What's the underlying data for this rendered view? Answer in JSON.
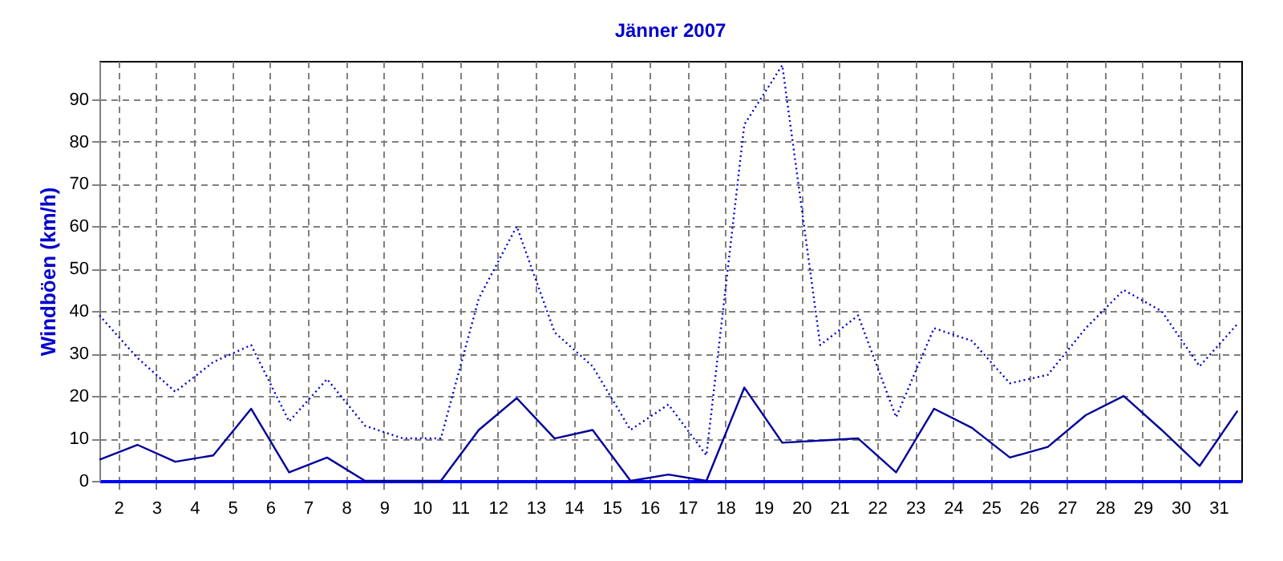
{
  "chart_data": {
    "type": "line",
    "title": "Jänner 2007",
    "ylabel": "Windböen (km/h)",
    "x": [
      1.5,
      2.5,
      3.5,
      4.5,
      5.5,
      6.5,
      7.5,
      8.5,
      9.5,
      10.5,
      11.5,
      12.5,
      13.5,
      14.5,
      15.5,
      16.5,
      17.5,
      18.5,
      19.5,
      20.5,
      21.5,
      22.5,
      23.5,
      24.5,
      25.5,
      26.5,
      27.5,
      28.5,
      29.5,
      30.5,
      31.5
    ],
    "series": [
      {
        "color": "#0000cc",
        "line_style": "dotted",
        "values": [
          39,
          29,
          21,
          28,
          32,
          14,
          24,
          13,
          10,
          10,
          43,
          60,
          35,
          27,
          12,
          18,
          6,
          84,
          98,
          32,
          39,
          15,
          36,
          33,
          23,
          25,
          36,
          45,
          40,
          27,
          37
        ]
      },
      {
        "color": "#000099",
        "line_style": "solid",
        "values": [
          5,
          8.5,
          4.5,
          6,
          17,
          2,
          5.5,
          0,
          0,
          0,
          12,
          19.5,
          10,
          12,
          0,
          1.5,
          0,
          22,
          9,
          9.5,
          10,
          2,
          17,
          12.5,
          5.5,
          8,
          15.5,
          20,
          12,
          3.5,
          16.5
        ]
      }
    ],
    "xlim": [
      1.5,
      31.6
    ],
    "xticks": [
      2,
      3,
      4,
      5,
      6,
      7,
      8,
      9,
      10,
      11,
      12,
      13,
      14,
      15,
      16,
      17,
      18,
      19,
      20,
      21,
      22,
      23,
      24,
      25,
      26,
      27,
      28,
      29,
      30,
      31
    ],
    "ylim": [
      0,
      99
    ],
    "yticks": [
      0,
      10,
      20,
      30,
      40,
      50,
      60,
      70,
      80,
      90
    ],
    "grid": true
  }
}
